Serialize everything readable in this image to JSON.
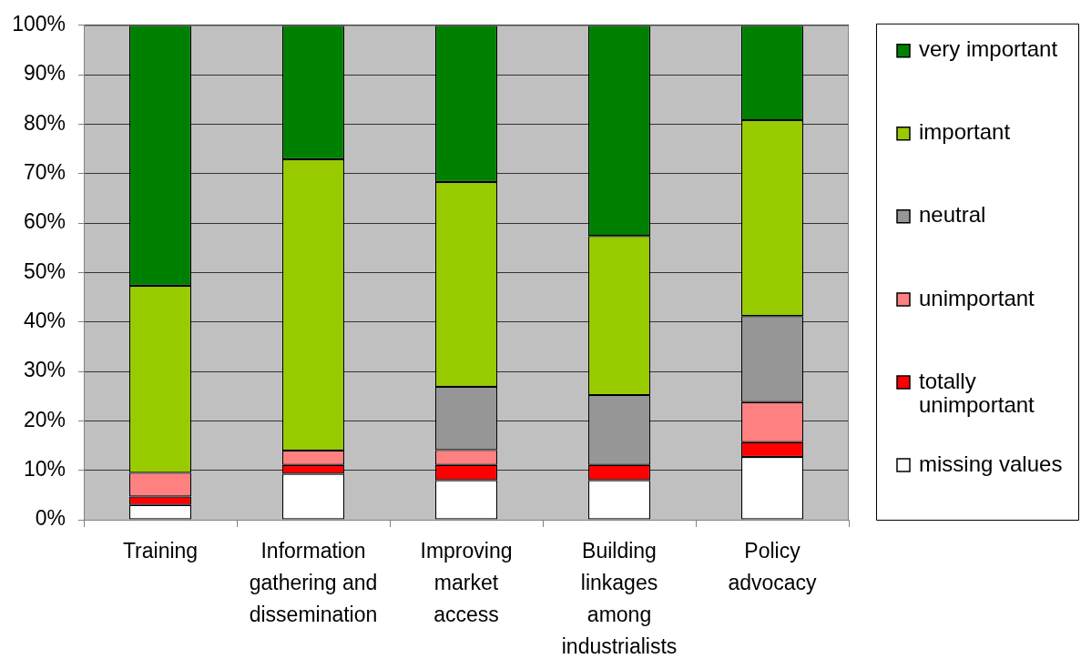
{
  "chart_data": {
    "type": "bar",
    "stacked": true,
    "categories": [
      "Training",
      "Information gathering and dissemination",
      "Improving market access",
      "Building linkages among industrialists",
      "Policy advocacy"
    ],
    "series": [
      {
        "name": "missing values",
        "color": "#ffffff",
        "values": [
          3.0,
          9.3,
          8.0,
          8.0,
          12.7
        ]
      },
      {
        "name": "totally unimportant",
        "color": "#ff0000",
        "values": [
          1.7,
          1.8,
          3.1,
          3.1,
          3.0
        ]
      },
      {
        "name": "unimportant",
        "color": "#ff8080",
        "values": [
          4.8,
          2.9,
          3.0,
          0,
          8.1
        ]
      },
      {
        "name": "neutral",
        "color": "#969696",
        "values": [
          0,
          0,
          12.8,
          14.1,
          17.4
        ]
      },
      {
        "name": "important",
        "color": "#99cc00",
        "values": [
          37.8,
          58.9,
          41.4,
          32.2,
          39.6
        ]
      },
      {
        "name": "very important",
        "color": "#008000",
        "values": [
          52.7,
          27.1,
          31.7,
          42.6,
          19.2
        ]
      }
    ],
    "ylim": [
      0,
      100
    ],
    "yticks": [
      {
        "value": 0,
        "label": "0%"
      },
      {
        "value": 10,
        "label": "10%"
      },
      {
        "value": 20,
        "label": "20%"
      },
      {
        "value": 30,
        "label": "30%"
      },
      {
        "value": 40,
        "label": "40%"
      },
      {
        "value": 50,
        "label": "50%"
      },
      {
        "value": 60,
        "label": "60%"
      },
      {
        "value": 70,
        "label": "70%"
      },
      {
        "value": 80,
        "label": "80%"
      },
      {
        "value": 90,
        "label": "90%"
      },
      {
        "value": 100,
        "label": "100%"
      }
    ],
    "grid": "y",
    "legend": "right"
  }
}
